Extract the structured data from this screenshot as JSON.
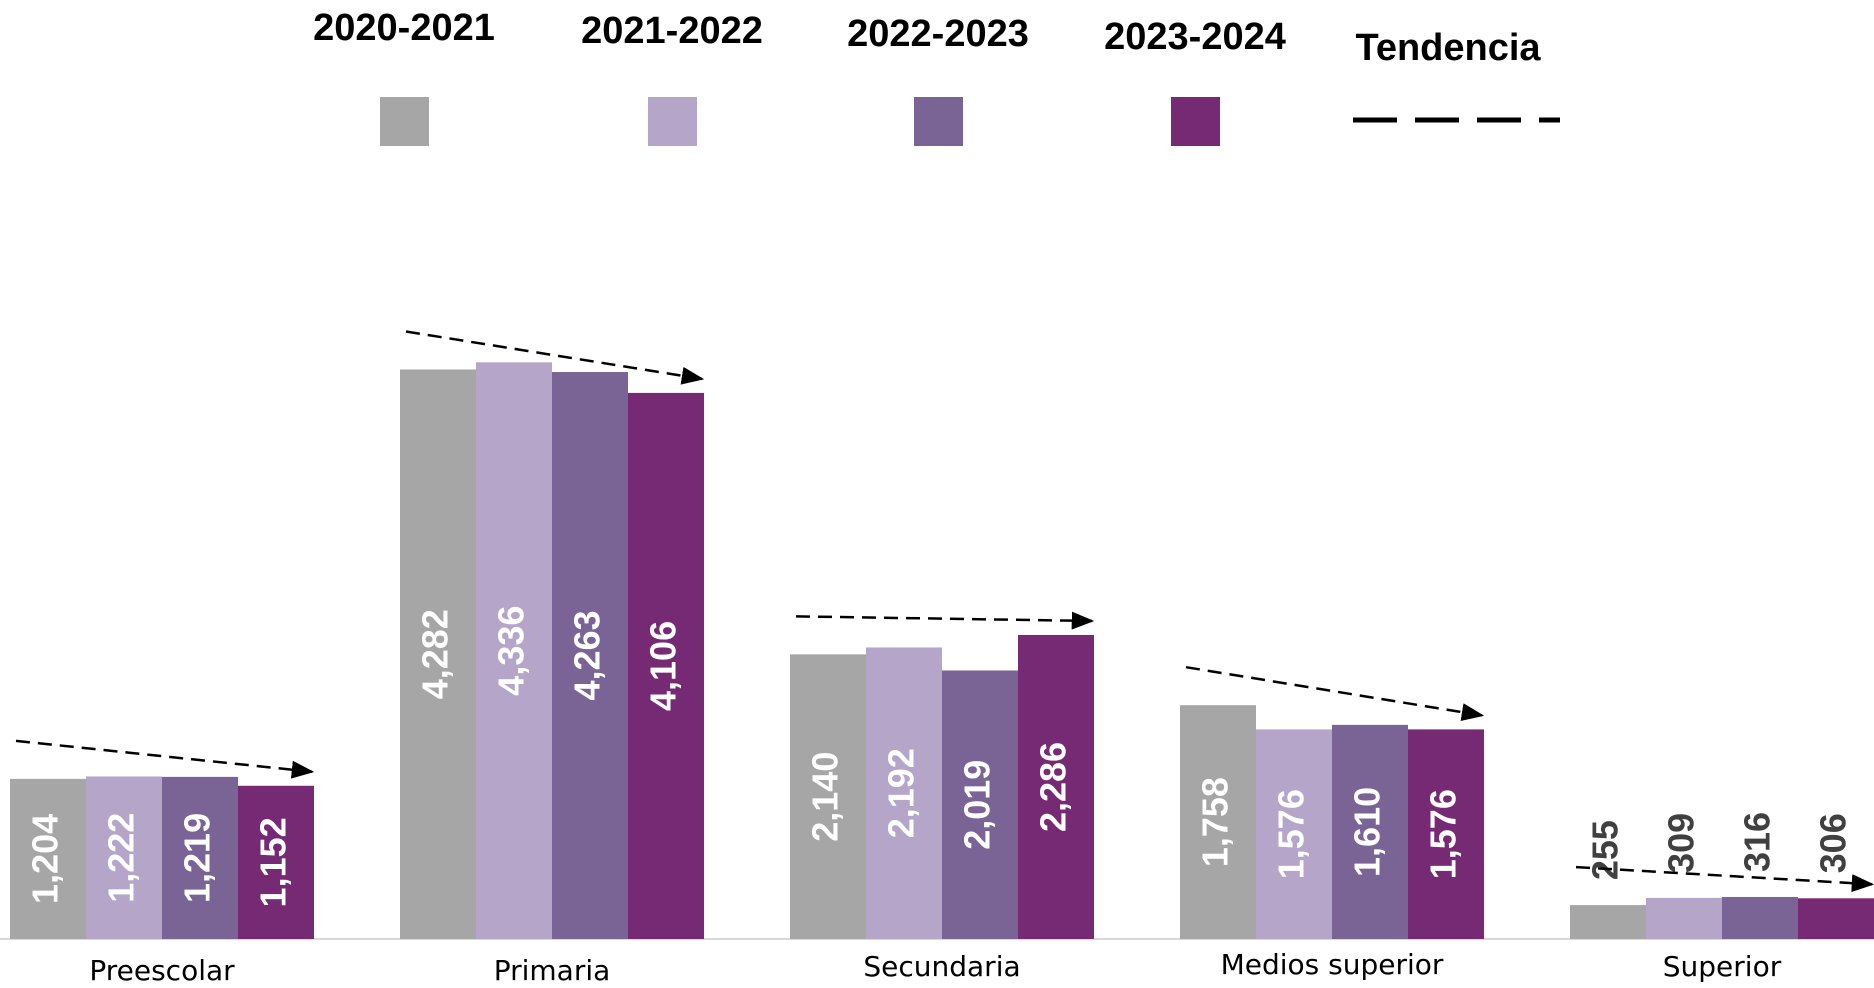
{
  "chart_data": {
    "type": "bar",
    "categories": [
      "Preescolar",
      "Primaria",
      "Secundaria",
      "Medios superior",
      "Superior"
    ],
    "series": [
      {
        "name": "2020-2021",
        "color": "#a6a6a6",
        "values": [
          1204,
          4282,
          2140,
          1758,
          255
        ],
        "value_labels": [
          "1,204",
          "4,282",
          "2,140",
          "1,758",
          "255"
        ]
      },
      {
        "name": "2021-2022",
        "color": "#b5a6c9",
        "values": [
          1222,
          4336,
          2192,
          1576,
          309
        ],
        "value_labels": [
          "1,222",
          "4,336",
          "2,192",
          "1,576",
          "309"
        ]
      },
      {
        "name": "2022-2023",
        "color": "#7a6495",
        "values": [
          1219,
          4263,
          2019,
          1610,
          316
        ],
        "value_labels": [
          "1,219",
          "4,263",
          "2,019",
          "1,610",
          "316"
        ]
      },
      {
        "name": "2023-2024",
        "color": "#772a74",
        "values": [
          1152,
          4106,
          2286,
          1576,
          306
        ],
        "value_labels": [
          "1,152",
          "4,106",
          "2,286",
          "1,576",
          "306"
        ]
      }
    ],
    "trend_label": "Tendencia",
    "ylim": [
      0,
      5000
    ]
  }
}
